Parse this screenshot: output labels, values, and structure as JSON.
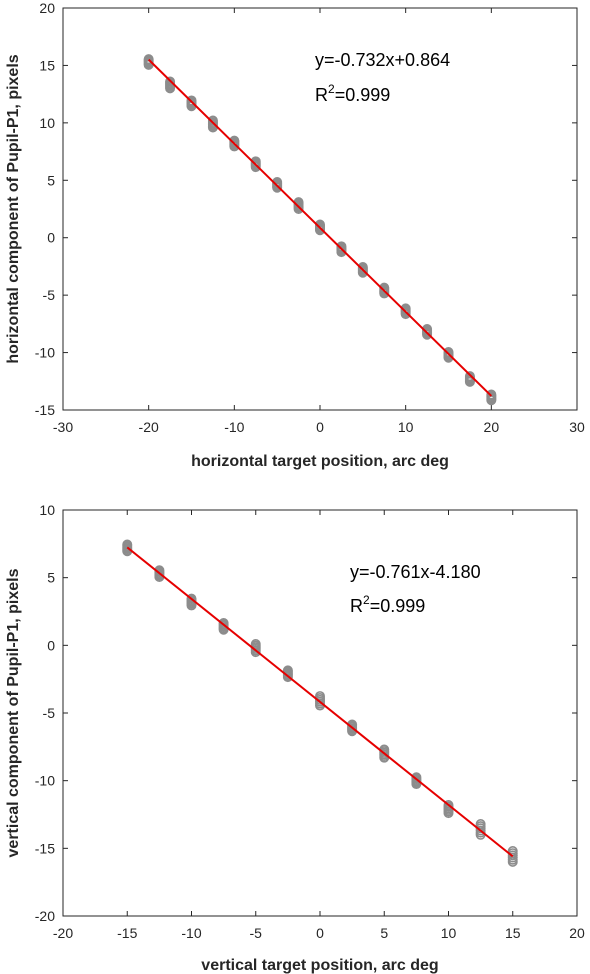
{
  "chart_data": [
    {
      "type": "scatter",
      "xlabel": "horizontal target position, arc deg",
      "ylabel": "horizontal component of Pupil-P1, pixels",
      "xlim": [
        -30,
        30
      ],
      "ylim": [
        -15,
        20
      ],
      "xticks": [
        "-30",
        "-20",
        "-10",
        "0",
        "10",
        "20",
        "30"
      ],
      "yticks": [
        "-15",
        "-10",
        "-5",
        "0",
        "5",
        "10",
        "15",
        "20"
      ],
      "x": [
        -20,
        -17.5,
        -15,
        -12.5,
        -10,
        -7.5,
        -5,
        -2.5,
        0,
        2.5,
        5,
        7.5,
        10,
        12.5,
        15,
        17.5,
        20
      ],
      "y": [
        15.3,
        13.3,
        11.7,
        9.9,
        8.2,
        6.4,
        4.6,
        2.8,
        0.9,
        -1.0,
        -2.8,
        -4.6,
        -6.4,
        -8.2,
        -10.2,
        -12.3,
        -13.9
      ],
      "spread": [
        0.5,
        0.6,
        0.5,
        0.6,
        0.5,
        0.5,
        0.5,
        0.6,
        0.5,
        0.5,
        0.5,
        0.5,
        0.5,
        0.5,
        0.5,
        0.5,
        0.5
      ],
      "fit": {
        "slope": -0.732,
        "intercept": 0.864,
        "x_range": [
          -20,
          20
        ]
      },
      "equation": "y=-0.732x+0.864",
      "r2_prefix": "R",
      "r2_sup": "2",
      "r2_value": "=0.999",
      "colors": {
        "points": "#8c8c8c",
        "fit": "#e60000"
      }
    },
    {
      "type": "scatter",
      "xlabel": "vertical target position, arc deg",
      "ylabel": "vertical component of Pupil-P1, pixels",
      "xlim": [
        -20,
        20
      ],
      "ylim": [
        -20,
        10
      ],
      "xticks": [
        "-20",
        "-15",
        "-10",
        "-5",
        "0",
        "5",
        "10",
        "15",
        "20"
      ],
      "yticks": [
        "-20",
        "-15",
        "-10",
        "-5",
        "0",
        "5",
        "10"
      ],
      "x": [
        -15,
        -12.5,
        -10,
        -7.5,
        -5,
        -2.5,
        0,
        2.5,
        5,
        7.5,
        10,
        12.5,
        15
      ],
      "y": [
        7.2,
        5.3,
        3.2,
        1.4,
        -0.2,
        -2.1,
        -4.1,
        -6.1,
        -8.0,
        -10.0,
        -12.1,
        -13.6,
        -15.6
      ],
      "spread": [
        0.5,
        0.5,
        0.5,
        0.5,
        0.6,
        0.5,
        0.7,
        0.5,
        0.6,
        0.5,
        0.6,
        0.8,
        0.8
      ],
      "fit": {
        "slope": -0.761,
        "intercept": -4.18,
        "x_range": [
          -15,
          15
        ]
      },
      "equation": "y=-0.761x-4.180",
      "r2_prefix": "R",
      "r2_sup": "2",
      "r2_value": "=0.999",
      "colors": {
        "points": "#8c8c8c",
        "fit": "#e60000"
      }
    }
  ]
}
